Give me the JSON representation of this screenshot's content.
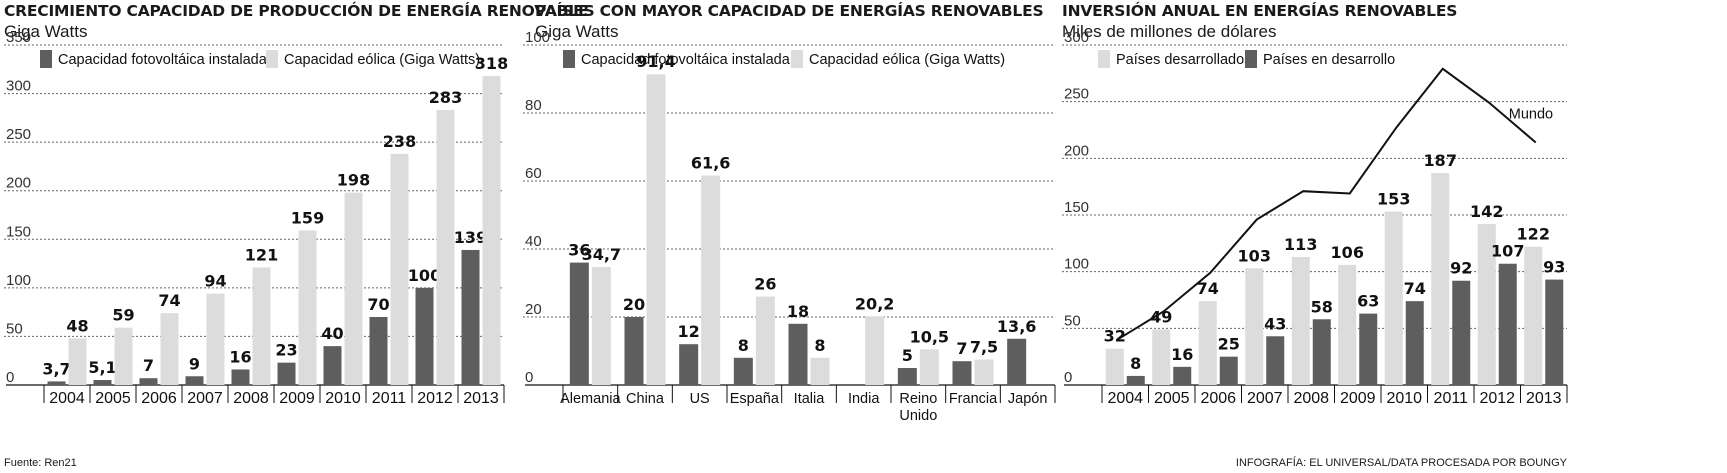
{
  "colors": {
    "dark": "#5e5e5e",
    "light": "#dcdcdc",
    "grid": "#666666",
    "line": "#111111"
  },
  "footer": {
    "source": "Fuente: Ren21",
    "credit": "INFOGRAFÍA: EL UNIVERSAL/DATA PROCESADA POR BOUNGY"
  },
  "chart_data": [
    {
      "type": "bar",
      "title": "CRECIMIENTO CAPACIDAD DE PRODUCCIÓN DE ENERGÍA RENOVABLE",
      "subtitle": "Giga Watts",
      "legend_position": "top",
      "ylim": [
        0,
        350
      ],
      "yticks": [
        0,
        50,
        100,
        150,
        200,
        250,
        300,
        350
      ],
      "categories": [
        "2004",
        "2005",
        "2006",
        "2007",
        "2008",
        "2009",
        "2010",
        "2011",
        "2012",
        "2013"
      ],
      "series": [
        {
          "name": "Capacidad fotovoltáica instalada",
          "color": "dark",
          "values": [
            3.7,
            5.1,
            7,
            9,
            16,
            23,
            40,
            70,
            100,
            139
          ],
          "labels": [
            "3,7",
            "5,1",
            "7",
            "9",
            "16",
            "23",
            "40",
            "70",
            "100",
            "139"
          ]
        },
        {
          "name": "Capacidad eólica (Giga Watts)",
          "color": "light",
          "values": [
            48,
            59,
            74,
            94,
            121,
            159,
            198,
            238,
            283,
            318
          ],
          "labels": [
            "48",
            "59",
            "74",
            "94",
            "121",
            "159",
            "198",
            "238",
            "283",
            "318"
          ]
        }
      ]
    },
    {
      "type": "bar",
      "title": "PAÍSES CON MAYOR CAPACIDAD DE ENERGÍAS RENOVABLES",
      "subtitle": "Giga Watts",
      "legend_position": "top",
      "ylim": [
        0,
        100
      ],
      "yticks": [
        0,
        20,
        40,
        60,
        80,
        100
      ],
      "categories": [
        "Alemania",
        "China",
        "US",
        "España",
        "Italia",
        "India",
        "Reino Unido",
        "Francia",
        "Japón"
      ],
      "series": [
        {
          "name": "Capacidad fotovoltáica instalada",
          "color": "dark",
          "values": [
            36,
            20,
            12,
            8,
            18,
            null,
            5,
            7,
            13.6
          ],
          "labels": [
            "36",
            "20",
            "12",
            "8",
            "18",
            "",
            "5",
            "7",
            "13,6"
          ]
        },
        {
          "name": "Capacidad eólica (Giga Watts)",
          "color": "light",
          "values": [
            34.7,
            91.4,
            61.6,
            26,
            8,
            20.2,
            10.5,
            7.5,
            null
          ],
          "labels": [
            "34,7",
            "91,4",
            "61,6",
            "26",
            "8",
            "20,2",
            "10,5",
            "7,5",
            ""
          ]
        }
      ]
    },
    {
      "type": "bar",
      "title": "INVERSIÓN ANUAL EN ENERGÍAS RENOVABLES",
      "subtitle": "Miles de millones de dólares",
      "legend_position": "top",
      "ylim": [
        0,
        300
      ],
      "yticks": [
        0,
        50,
        100,
        150,
        200,
        250,
        300
      ],
      "categories": [
        "2004",
        "2005",
        "2006",
        "2007",
        "2008",
        "2009",
        "2010",
        "2011",
        "2012",
        "2013"
      ],
      "series": [
        {
          "name": "Países desarrollados",
          "color": "light",
          "values": [
            32,
            49,
            74,
            103,
            113,
            106,
            153,
            187,
            142,
            122
          ],
          "labels": [
            "32",
            "49",
            "74",
            "103",
            "113",
            "106",
            "153",
            "187",
            "142",
            "122"
          ]
        },
        {
          "name": "Países en desarrollo",
          "color": "dark",
          "values": [
            8,
            16,
            25,
            43,
            58,
            63,
            74,
            92,
            107,
            93
          ],
          "labels": [
            "8",
            "16",
            "25",
            "43",
            "58",
            "63",
            "74",
            "92",
            "107",
            "93"
          ]
        }
      ],
      "line": {
        "name": "Mundo",
        "values": [
          40,
          65,
          99,
          146,
          171,
          169,
          227,
          279,
          249,
          214
        ]
      }
    }
  ]
}
